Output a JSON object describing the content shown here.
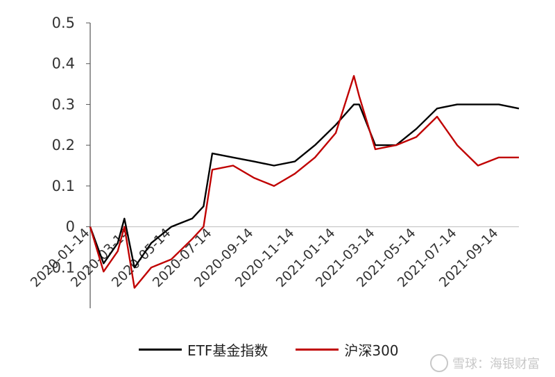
{
  "chart_data": {
    "type": "line",
    "title": "",
    "xlabel": "",
    "ylabel": "",
    "ylim": [
      -0.2,
      0.5
    ],
    "y_ticks": [
      "0.5",
      "0.4",
      "0.3",
      "0.2",
      "0.1",
      "0",
      "-0.1"
    ],
    "x_ticks": [
      "2020-01-14",
      "2020-03-14",
      "2020-05-14",
      "2020-07-14",
      "2020-09-14",
      "2020-11-14",
      "2021-01-14",
      "2021-03-14",
      "2021-05-14",
      "2021-07-14",
      "2021-09-14"
    ],
    "x": [
      "2020-01-14",
      "2020-02-03",
      "2020-02-24",
      "2020-03-05",
      "2020-03-20",
      "2020-04-14",
      "2020-05-14",
      "2020-06-14",
      "2020-07-01",
      "2020-07-14",
      "2020-08-14",
      "2020-09-14",
      "2020-10-14",
      "2020-11-14",
      "2020-12-14",
      "2021-01-14",
      "2021-02-10",
      "2021-02-18",
      "2021-03-14",
      "2021-04-14",
      "2021-05-14",
      "2021-06-14",
      "2021-07-14",
      "2021-08-14",
      "2021-09-14",
      "2021-10-14"
    ],
    "series": [
      {
        "name": "ETF基金指数",
        "color": "#000000",
        "values": [
          0.0,
          -0.09,
          -0.04,
          0.02,
          -0.1,
          -0.04,
          0.0,
          0.02,
          0.05,
          0.18,
          0.17,
          0.16,
          0.15,
          0.16,
          0.2,
          0.25,
          0.3,
          0.3,
          0.2,
          0.2,
          0.24,
          0.29,
          0.3,
          0.3,
          0.3,
          0.29
        ]
      },
      {
        "name": "沪深300",
        "color": "#c00000",
        "values": [
          0.0,
          -0.11,
          -0.06,
          0.0,
          -0.15,
          -0.1,
          -0.08,
          -0.03,
          0.0,
          0.14,
          0.15,
          0.12,
          0.1,
          0.13,
          0.17,
          0.23,
          0.37,
          0.32,
          0.19,
          0.2,
          0.22,
          0.27,
          0.2,
          0.15,
          0.17,
          0.17
        ]
      }
    ],
    "grid": false,
    "legend": "bottom"
  },
  "watermark": {
    "text": "雪球：海银财富"
  }
}
